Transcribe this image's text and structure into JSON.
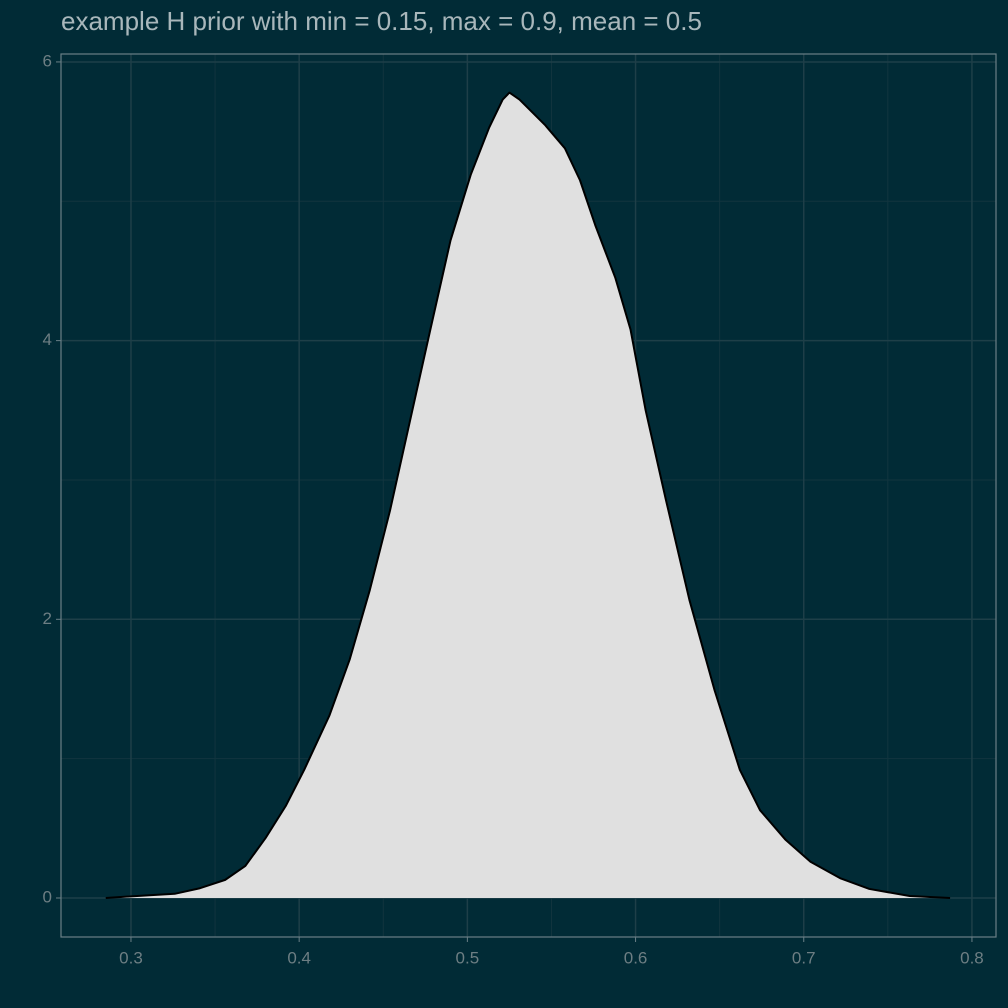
{
  "chart_data": {
    "type": "area",
    "title": "example H prior with min = 0.15, max = 0.9, mean = 0.5",
    "x": [
      0.285,
      0.294,
      0.311,
      0.326,
      0.341,
      0.356,
      0.368,
      0.38,
      0.392,
      0.403,
      0.418,
      0.43,
      0.442,
      0.454,
      0.466,
      0.478,
      0.49,
      0.502,
      0.513,
      0.521,
      0.525,
      0.531,
      0.546,
      0.558,
      0.567,
      0.576,
      0.588,
      0.597,
      0.606,
      0.618,
      0.632,
      0.647,
      0.662,
      0.674,
      0.689,
      0.704,
      0.722,
      0.739,
      0.763,
      0.787
    ],
    "values": [
      0,
      0.007,
      0.02,
      0.03,
      0.07,
      0.13,
      0.23,
      0.43,
      0.66,
      0.92,
      1.31,
      1.71,
      2.21,
      2.78,
      3.43,
      4.08,
      4.72,
      5.19,
      5.53,
      5.73,
      5.78,
      5.73,
      5.55,
      5.38,
      5.15,
      4.83,
      4.45,
      4.08,
      3.5,
      2.86,
      2.14,
      1.49,
      0.92,
      0.63,
      0.42,
      0.26,
      0.14,
      0.065,
      0.014,
      0
    ],
    "color": "#e0e0e0",
    "xlim": [
      0.2584,
      0.8143
    ],
    "xticks": [
      0.3,
      0.4,
      0.5,
      0.6,
      0.7,
      0.8
    ],
    "ylim": [
      -0.28,
      6.057
    ],
    "yticks": [
      0,
      2,
      4,
      6
    ],
    "grid": true
  }
}
